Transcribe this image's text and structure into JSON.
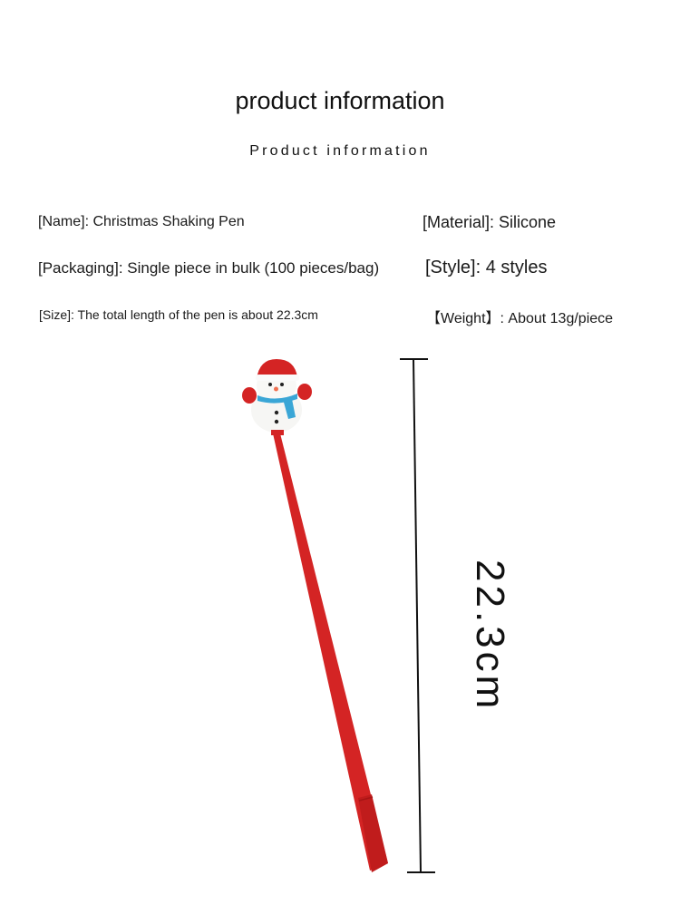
{
  "header": {
    "title": "product information",
    "subtitle": "Product information"
  },
  "specs": {
    "name": "[Name]: Christmas Shaking Pen",
    "material": "[Material]: Silicone",
    "packaging": "[Packaging]: Single piece in bulk (100 pieces/bag)",
    "style": "[Style]: 4 styles",
    "size": "[Size]: The total length of the pen is about 22.3cm",
    "weight": "【Weight】: About 13g/piece"
  },
  "dimension": {
    "label": "22.3cm"
  },
  "colors": {
    "pen": "#d42424",
    "scarf": "#3aa6d6"
  }
}
